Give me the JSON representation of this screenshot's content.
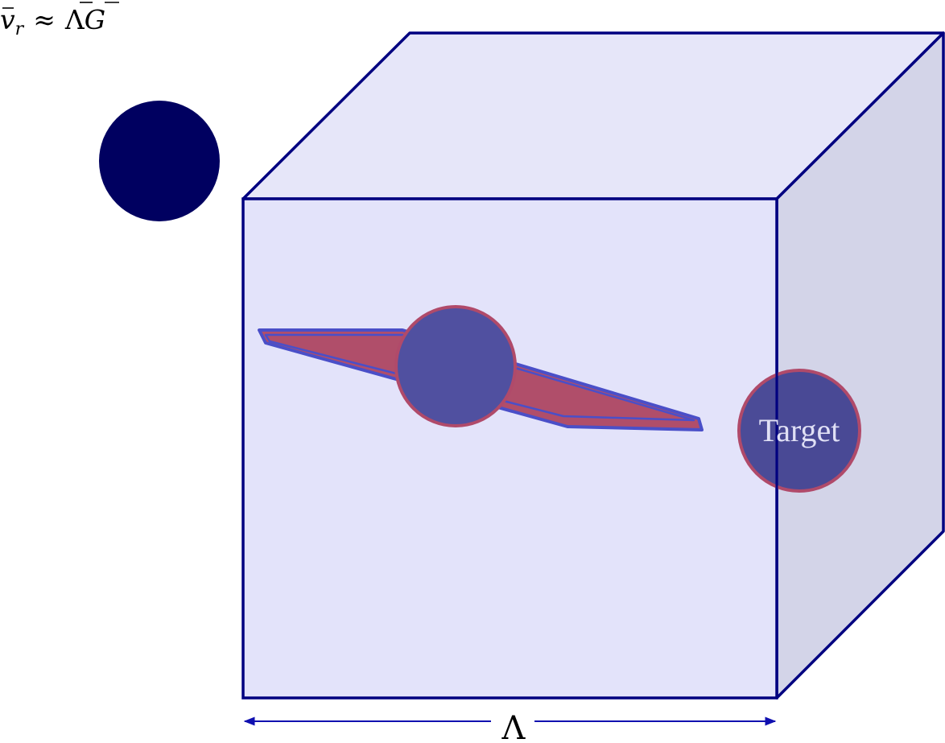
{
  "formula": {
    "lhs_symbol": "v",
    "lhs_subscript": "r",
    "relation": "≈",
    "rhs_symbol_1": "Λ",
    "rhs_symbol_2": "G"
  },
  "target_label": "Target",
  "width_label": "Λ",
  "colors": {
    "outline": "#000080",
    "cube_front": "#e3e3fa",
    "cube_top": "#e6e6f9",
    "cube_side": "#d3d4e8",
    "ball": "#000060",
    "wing_fill": "#b04e6a",
    "wing_stroke": "#4a4fc8",
    "sphere_fill": "#5050a0",
    "sphere_stroke": "#b04a6a",
    "target_fill": "#3a3a8c",
    "target_text": "#e0e0f5",
    "arrow": "#1010b0"
  }
}
